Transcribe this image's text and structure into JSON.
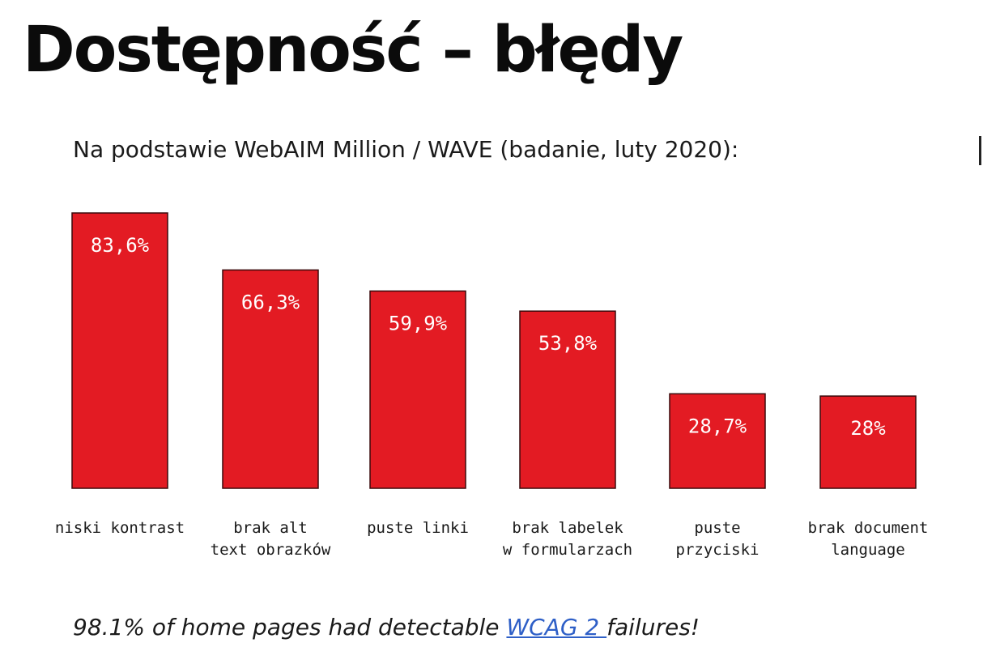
{
  "title": "Dostępność – błędy",
  "subtitle": "Na podstawie WebAIM Million / WAVE (badanie, luty 2020):",
  "chart_data": {
    "type": "bar",
    "categories": [
      [
        "niski kontrast"
      ],
      [
        "brak alt",
        "text obrazków"
      ],
      [
        "puste linki"
      ],
      [
        "brak labelek",
        "w formularzach"
      ],
      [
        "puste",
        "przyciski"
      ],
      [
        "brak document",
        "language"
      ]
    ],
    "values": [
      83.6,
      66.3,
      59.9,
      53.8,
      28.7,
      28
    ],
    "value_labels": [
      "83,6%",
      "66,3%",
      "59,9%",
      "53,8%",
      "28,7%",
      "28%"
    ],
    "bar_color": "#e31b23",
    "grid": false
  },
  "footer": {
    "text_before": "98.1% of home pages had detectable ",
    "link_text": "WCAG 2 ",
    "text_after": "failures!"
  },
  "colors": {
    "bar": "#e31b23",
    "link": "#2e5fc7"
  }
}
